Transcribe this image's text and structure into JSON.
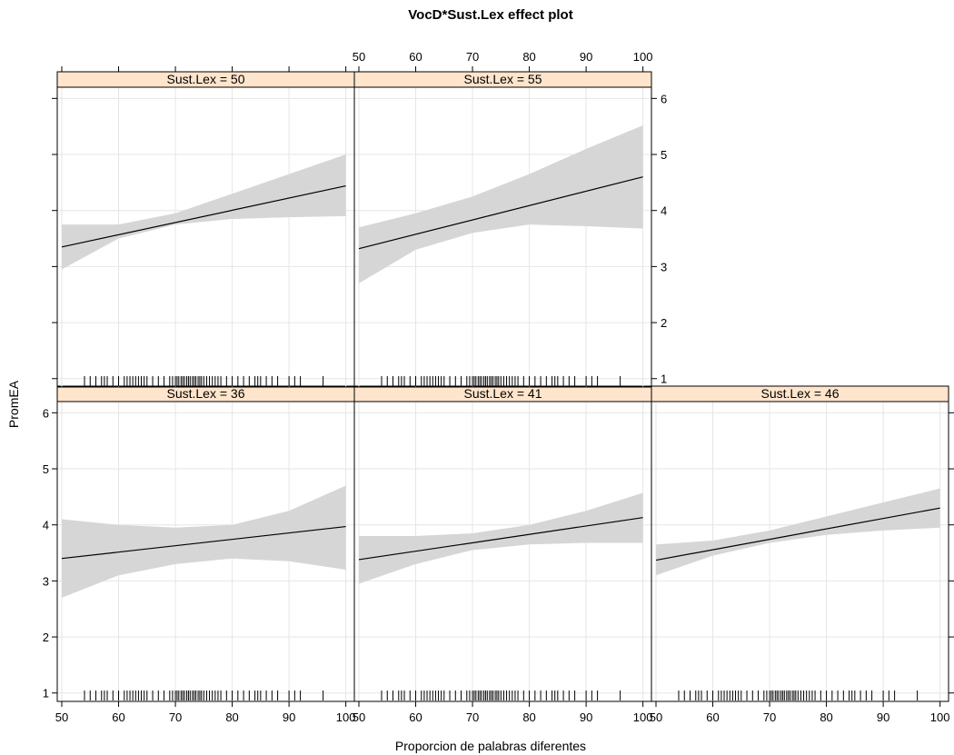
{
  "chart_data": {
    "type": "line",
    "title": "VocD*Sust.Lex effect plot",
    "xlabel": "Proporcion de palabras diferentes",
    "ylabel": "PromEA",
    "xlim": [
      50,
      100
    ],
    "ylim": [
      1,
      6
    ],
    "xticks": [
      50,
      60,
      70,
      80,
      90,
      100
    ],
    "yticks": [
      1,
      2,
      3,
      4,
      5,
      6
    ],
    "grid": true,
    "colors": {
      "strip": "#ffe5cc",
      "band": "#d6d6d6",
      "line": "#000000",
      "grid": "#e6e6e6"
    },
    "rug": [
      54,
      55,
      56,
      57,
      57.5,
      58,
      59,
      60,
      61,
      61.5,
      62,
      62.5,
      63,
      63.5,
      64,
      64.5,
      65,
      66,
      67,
      68,
      69,
      69.5,
      70,
      70.3,
      70.6,
      71,
      71.3,
      71.6,
      72,
      72.3,
      72.6,
      73,
      73.3,
      73.6,
      74,
      74.3,
      74.6,
      75,
      75.5,
      76,
      76.5,
      77,
      77.5,
      78,
      79,
      80,
      81,
      82,
      83,
      84,
      84.5,
      85,
      86,
      87,
      88,
      90,
      91,
      92,
      96
    ],
    "panels": [
      {
        "label": "Sust.Lex = 36",
        "fit": [
          [
            50,
            3.4
          ],
          [
            100,
            3.97
          ]
        ],
        "upper": [
          [
            50,
            4.1
          ],
          [
            60,
            4.0
          ],
          [
            70,
            3.95
          ],
          [
            80,
            4.0
          ],
          [
            90,
            4.25
          ],
          [
            100,
            4.7
          ]
        ],
        "lower": [
          [
            50,
            2.7
          ],
          [
            60,
            3.1
          ],
          [
            70,
            3.3
          ],
          [
            80,
            3.4
          ],
          [
            90,
            3.35
          ],
          [
            100,
            3.2
          ]
        ]
      },
      {
        "label": "Sust.Lex = 41",
        "fit": [
          [
            50,
            3.38
          ],
          [
            100,
            4.13
          ]
        ],
        "upper": [
          [
            50,
            3.8
          ],
          [
            60,
            3.8
          ],
          [
            70,
            3.85
          ],
          [
            80,
            4.0
          ],
          [
            90,
            4.25
          ],
          [
            100,
            4.57
          ]
        ],
        "lower": [
          [
            50,
            2.95
          ],
          [
            60,
            3.3
          ],
          [
            70,
            3.55
          ],
          [
            80,
            3.65
          ],
          [
            90,
            3.68
          ],
          [
            100,
            3.68
          ]
        ]
      },
      {
        "label": "Sust.Lex = 46",
        "fit": [
          [
            50,
            3.37
          ],
          [
            100,
            4.3
          ]
        ],
        "upper": [
          [
            50,
            3.65
          ],
          [
            60,
            3.72
          ],
          [
            70,
            3.9
          ],
          [
            80,
            4.15
          ],
          [
            90,
            4.4
          ],
          [
            100,
            4.65
          ]
        ],
        "lower": [
          [
            50,
            3.1
          ],
          [
            60,
            3.45
          ],
          [
            70,
            3.68
          ],
          [
            80,
            3.82
          ],
          [
            90,
            3.9
          ],
          [
            100,
            3.95
          ]
        ]
      },
      {
        "label": "Sust.Lex = 50",
        "fit": [
          [
            50,
            3.35
          ],
          [
            100,
            4.44
          ]
        ],
        "upper": [
          [
            50,
            3.75
          ],
          [
            60,
            3.75
          ],
          [
            70,
            3.95
          ],
          [
            80,
            4.3
          ],
          [
            90,
            4.65
          ],
          [
            100,
            5.0
          ]
        ],
        "lower": [
          [
            50,
            2.95
          ],
          [
            60,
            3.5
          ],
          [
            70,
            3.75
          ],
          [
            80,
            3.85
          ],
          [
            90,
            3.88
          ],
          [
            100,
            3.9
          ]
        ]
      },
      {
        "label": "Sust.Lex = 55",
        "fit": [
          [
            50,
            3.32
          ],
          [
            100,
            4.6
          ]
        ],
        "upper": [
          [
            50,
            3.7
          ],
          [
            60,
            3.95
          ],
          [
            70,
            4.25
          ],
          [
            80,
            4.65
          ],
          [
            90,
            5.1
          ],
          [
            100,
            5.52
          ]
        ],
        "lower": [
          [
            50,
            2.7
          ],
          [
            60,
            3.3
          ],
          [
            70,
            3.6
          ],
          [
            80,
            3.75
          ],
          [
            90,
            3.72
          ],
          [
            100,
            3.68
          ]
        ]
      }
    ]
  }
}
